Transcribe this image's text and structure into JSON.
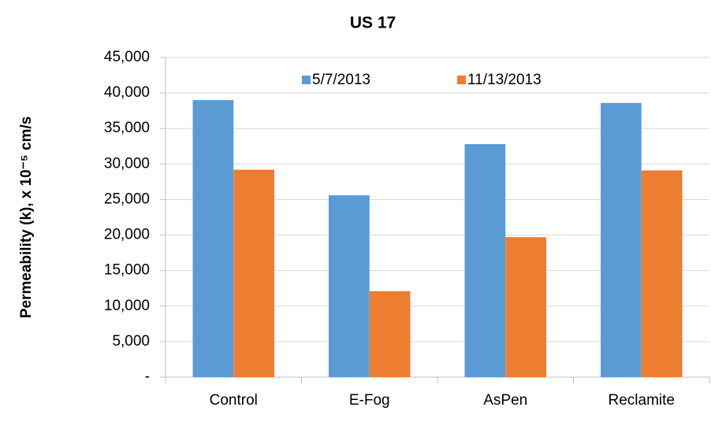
{
  "chart_data": {
    "type": "bar",
    "title": "US 17",
    "y_label": "Permeability (k), x 10⁻⁵ cm/s",
    "categories": [
      "Control",
      "E-Fog",
      "AsPen",
      "Reclamite"
    ],
    "series": [
      {
        "name": "5/7/2013",
        "color": "#5b9bd5",
        "values": [
          39000,
          25600,
          32800,
          38600
        ]
      },
      {
        "name": "11/13/2013",
        "color": "#ed7d31",
        "values": [
          29200,
          12100,
          19700,
          29100
        ]
      }
    ],
    "ylim": [
      0,
      45000
    ],
    "yticks": [
      {
        "value": 0,
        "label": "-"
      },
      {
        "value": 5000,
        "label": "5,000"
      },
      {
        "value": 10000,
        "label": "10,000"
      },
      {
        "value": 15000,
        "label": "15,000"
      },
      {
        "value": 20000,
        "label": "20,000"
      },
      {
        "value": 25000,
        "label": "25,000"
      },
      {
        "value": 30000,
        "label": "30,000"
      },
      {
        "value": 35000,
        "label": "35,000"
      },
      {
        "value": 40000,
        "label": "40,000"
      },
      {
        "value": 45000,
        "label": "45,000"
      }
    ],
    "grid": true,
    "legend": "top"
  }
}
